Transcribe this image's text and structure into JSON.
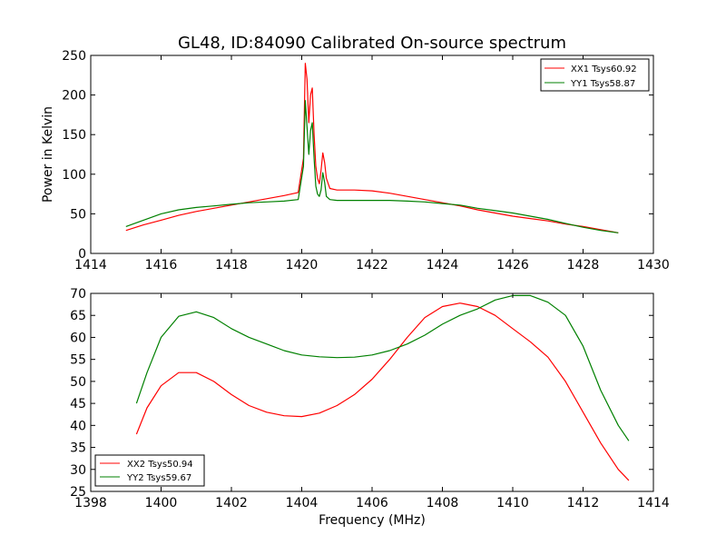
{
  "figure": {
    "title": "GL48, ID:84090 Calibrated On-source spectrum"
  },
  "chart_data": [
    {
      "type": "line",
      "title": "GL48, ID:84090 Calibrated On-source spectrum",
      "xlabel": "",
      "ylabel": "Power in Kelvin",
      "xlim": [
        1414,
        1430
      ],
      "ylim": [
        0,
        250
      ],
      "xticks": [
        1414,
        1416,
        1418,
        1420,
        1422,
        1424,
        1426,
        1428,
        1430
      ],
      "yticks": [
        0,
        50,
        100,
        150,
        200,
        250
      ],
      "grid": false,
      "legend_position": "top-right",
      "series": [
        {
          "name": "XX1 Tsys60.92",
          "color": "#ff0000",
          "x": [
            1415.0,
            1415.5,
            1416.0,
            1416.5,
            1417.0,
            1417.5,
            1418.0,
            1418.5,
            1419.0,
            1419.5,
            1419.9,
            1420.05,
            1420.1,
            1420.15,
            1420.2,
            1420.25,
            1420.3,
            1420.35,
            1420.4,
            1420.45,
            1420.5,
            1420.55,
            1420.6,
            1420.65,
            1420.7,
            1420.8,
            1421.0,
            1421.5,
            1422.0,
            1422.5,
            1423.0,
            1423.5,
            1424.0,
            1424.5,
            1425.0,
            1425.5,
            1426.0,
            1426.5,
            1427.0,
            1427.5,
            1428.0,
            1428.5,
            1429.0
          ],
          "y": [
            29,
            36,
            42,
            48,
            53,
            57,
            61,
            65,
            69,
            73,
            77,
            120,
            240,
            220,
            165,
            200,
            209,
            150,
            110,
            95,
            88,
            105,
            127,
            115,
            95,
            82,
            80,
            80,
            79,
            76,
            72,
            68,
            64,
            60,
            55,
            51,
            47,
            44,
            41,
            37,
            34,
            30,
            26
          ]
        },
        {
          "name": "YY1 Tsys58.87",
          "color": "#008000",
          "x": [
            1415.0,
            1415.5,
            1416.0,
            1416.5,
            1417.0,
            1417.5,
            1418.0,
            1418.5,
            1419.0,
            1419.5,
            1419.9,
            1420.05,
            1420.1,
            1420.15,
            1420.2,
            1420.25,
            1420.3,
            1420.35,
            1420.4,
            1420.45,
            1420.5,
            1420.55,
            1420.6,
            1420.65,
            1420.7,
            1420.8,
            1421.0,
            1421.5,
            1422.0,
            1422.5,
            1423.0,
            1423.5,
            1424.0,
            1424.5,
            1425.0,
            1425.5,
            1426.0,
            1426.5,
            1427.0,
            1427.5,
            1428.0,
            1428.5,
            1429.0
          ],
          "y": [
            34,
            42,
            50,
            55,
            58,
            60,
            62,
            64,
            65,
            66,
            68,
            110,
            193,
            160,
            125,
            155,
            165,
            120,
            85,
            75,
            72,
            80,
            102,
            90,
            72,
            68,
            67,
            67,
            67,
            67,
            66,
            65,
            63,
            61,
            57,
            54,
            51,
            47,
            43,
            38,
            33,
            29,
            26
          ]
        }
      ]
    },
    {
      "type": "line",
      "title": "",
      "xlabel": "Frequency (MHz)",
      "ylabel": "",
      "xlim": [
        1398,
        1414
      ],
      "ylim": [
        25,
        70
      ],
      "xticks": [
        1398,
        1400,
        1402,
        1404,
        1406,
        1408,
        1410,
        1412,
        1414
      ],
      "yticks": [
        25,
        30,
        35,
        40,
        45,
        50,
        55,
        60,
        65,
        70
      ],
      "grid": false,
      "legend_position": "bottom-left",
      "series": [
        {
          "name": "XX2 Tsys50.94",
          "color": "#ff0000",
          "x": [
            1399.3,
            1399.6,
            1400.0,
            1400.5,
            1401.0,
            1401.5,
            1402.0,
            1402.5,
            1403.0,
            1403.5,
            1404.0,
            1404.5,
            1405.0,
            1405.5,
            1406.0,
            1406.5,
            1407.0,
            1407.5,
            1408.0,
            1408.5,
            1409.0,
            1409.5,
            1410.0,
            1410.5,
            1411.0,
            1411.5,
            1412.0,
            1412.5,
            1413.0,
            1413.3
          ],
          "y": [
            38,
            44,
            49,
            52,
            52,
            50,
            47,
            44.5,
            43,
            42.2,
            42,
            42.8,
            44.5,
            47,
            50.5,
            55,
            60,
            64.5,
            67,
            67.8,
            67,
            65,
            62,
            59,
            55.5,
            50,
            43,
            36,
            30,
            27.5
          ]
        },
        {
          "name": "YY2 Tsys59.67",
          "color": "#008000",
          "x": [
            1399.3,
            1399.6,
            1400.0,
            1400.5,
            1401.0,
            1401.5,
            1402.0,
            1402.5,
            1403.0,
            1403.5,
            1404.0,
            1404.5,
            1405.0,
            1405.5,
            1406.0,
            1406.5,
            1407.0,
            1407.5,
            1408.0,
            1408.5,
            1409.0,
            1409.5,
            1410.0,
            1410.5,
            1411.0,
            1411.5,
            1412.0,
            1412.5,
            1413.0,
            1413.3
          ],
          "y": [
            45,
            52,
            60,
            64.8,
            65.8,
            64.5,
            62,
            60,
            58.5,
            57,
            56,
            55.6,
            55.4,
            55.5,
            56,
            57,
            58.5,
            60.5,
            63,
            65,
            66.5,
            68.5,
            69.5,
            69.5,
            68,
            65,
            58,
            48,
            40,
            36.5
          ]
        }
      ]
    }
  ]
}
